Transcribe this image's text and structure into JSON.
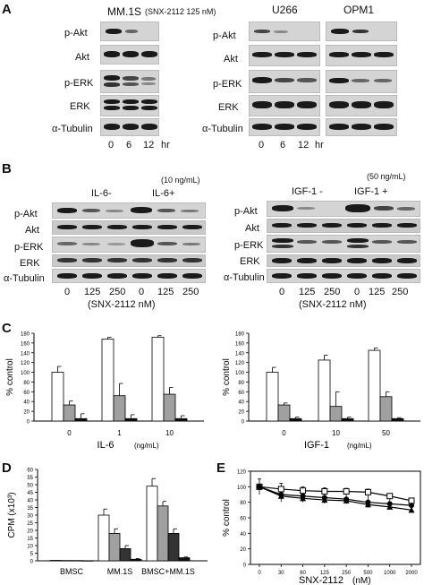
{
  "panels": {
    "A": {
      "label": "A",
      "mm1s": {
        "title": "MM.1S",
        "treatment": "(SNX-2112  125 nM)",
        "times": [
          "0",
          "6",
          "12"
        ],
        "time_unit": "hr"
      },
      "u266": {
        "title": "U266",
        "times": [
          "0",
          "6",
          "12"
        ],
        "time_unit": "hr"
      },
      "opm1": {
        "title": "OPM1"
      },
      "rows": [
        "p-Akt",
        "Akt",
        "p-ERK",
        "ERK",
        "α-Tubulin"
      ]
    },
    "B": {
      "label": "B",
      "il6": {
        "conc": "(10 ng/mL)",
        "minus": "IL-6-",
        "plus": "IL-6+",
        "doses": [
          "0",
          "125",
          "250",
          "0",
          "125",
          "250"
        ],
        "unit": "(SNX-2112 nM)"
      },
      "igf1": {
        "conc": "(50 ng/mL)",
        "minus": "IGF-1 -",
        "plus": "IGF-1 +",
        "doses": [
          "0",
          "125",
          "250",
          "0",
          "125",
          "250"
        ],
        "unit": "(SNX-2112 nM)"
      },
      "rows": [
        "p-Akt",
        "Akt",
        "p-ERK",
        "ERK",
        "α-Tubulin"
      ]
    },
    "C": {
      "label": "C"
    },
    "D": {
      "label": "D"
    },
    "E": {
      "label": "E"
    }
  },
  "chart_data": [
    {
      "type": "bar",
      "panel": "C-left",
      "ylabel": "% control",
      "xlabel": "IL-6",
      "xunit": "(ng/mL)",
      "categories": [
        "0",
        "1",
        "10"
      ],
      "ylim": [
        0,
        180
      ],
      "yticks": [
        0,
        20,
        40,
        60,
        80,
        100,
        120,
        140,
        160,
        180
      ],
      "series": [
        {
          "color": "#ffffff",
          "values": [
            100,
            168,
            172
          ],
          "errors": [
            12,
            4,
            3
          ]
        },
        {
          "color": "#a0a0a0",
          "values": [
            33,
            52,
            55
          ],
          "errors": [
            8,
            25,
            14
          ]
        },
        {
          "color": "#111111",
          "values": [
            5,
            5,
            5
          ],
          "errors": [
            10,
            8,
            6
          ]
        }
      ]
    },
    {
      "type": "bar",
      "panel": "C-right",
      "ylabel": "% control",
      "xlabel": "IGF-1",
      "xunit": "(ng/mL)",
      "categories": [
        "0",
        "10",
        "50"
      ],
      "ylim": [
        0,
        180
      ],
      "yticks": [
        0,
        20,
        40,
        60,
        80,
        100,
        120,
        140,
        160,
        180
      ],
      "series": [
        {
          "color": "#ffffff",
          "values": [
            100,
            125,
            145
          ],
          "errors": [
            10,
            10,
            5
          ]
        },
        {
          "color": "#a0a0a0",
          "values": [
            33,
            30,
            50
          ],
          "errors": [
            4,
            30,
            10
          ]
        },
        {
          "color": "#111111",
          "values": [
            5,
            5,
            5
          ],
          "errors": [
            3,
            3,
            2
          ]
        }
      ]
    },
    {
      "type": "bar",
      "panel": "D",
      "ylabel": "CPM (x10³)",
      "categories": [
        "BMSC",
        "MM.1S",
        "BMSC+MM.1S"
      ],
      "ylim": [
        0,
        60
      ],
      "yticks": [
        0,
        5,
        10,
        15,
        20,
        25,
        30,
        35,
        40,
        45,
        50,
        55,
        60
      ],
      "series": [
        {
          "color": "#ffffff",
          "values": [
            0.3,
            30,
            49
          ],
          "errors": [
            0,
            4,
            5
          ]
        },
        {
          "color": "#a0a0a0",
          "values": [
            0.2,
            18,
            36
          ],
          "errors": [
            0,
            3,
            3
          ]
        },
        {
          "color": "#333333",
          "values": [
            0.2,
            8,
            18
          ],
          "errors": [
            0,
            2,
            3
          ]
        },
        {
          "color": "#111111",
          "values": [
            0.1,
            1,
            2
          ],
          "errors": [
            0,
            0.5,
            0.5
          ]
        }
      ]
    },
    {
      "type": "line",
      "panel": "E",
      "ylabel": "% control",
      "xlabel": "SNX-2112",
      "xunit": "(nM)",
      "x": [
        "0",
        "30",
        "60",
        "125",
        "250",
        "500",
        "1000",
        "2000"
      ],
      "ylim": [
        0,
        120
      ],
      "yticks": [
        0,
        20,
        40,
        60,
        80,
        100,
        120
      ],
      "series": [
        {
          "marker": "open-square",
          "values": [
            100,
            97,
            95,
            94,
            94,
            93,
            88,
            82
          ]
        },
        {
          "marker": "filled-circle",
          "values": [
            100,
            90,
            88,
            86,
            84,
            80,
            78,
            76
          ]
        },
        {
          "marker": "filled-triangle",
          "values": [
            100,
            88,
            85,
            83,
            82,
            77,
            74,
            70
          ]
        }
      ],
      "errors": [
        10,
        12,
        10,
        10,
        10,
        12,
        10,
        8
      ]
    }
  ]
}
